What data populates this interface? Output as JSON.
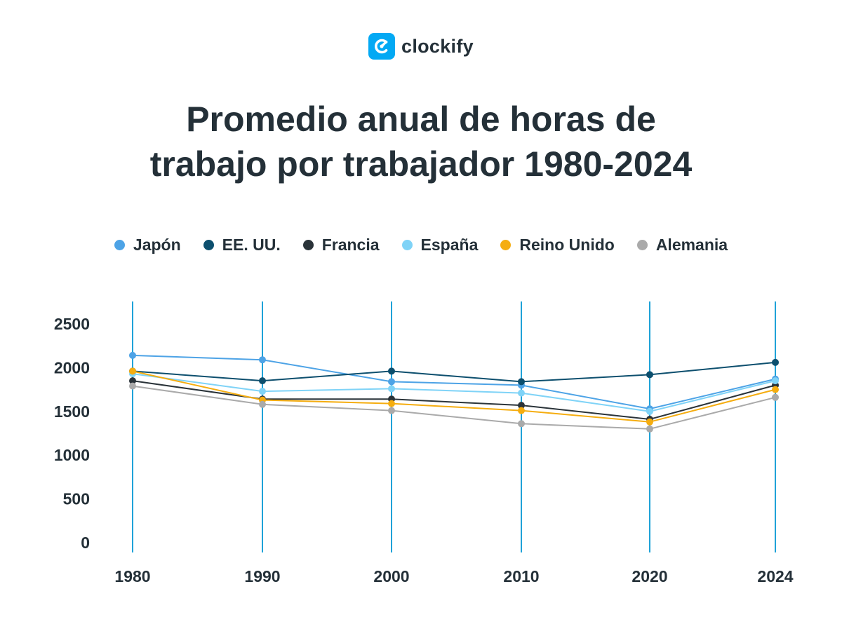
{
  "brand": {
    "name": "clockify",
    "accent": "#03a9f4"
  },
  "chart_data": {
    "type": "line",
    "title": "Promedio anual de horas de trabajo por trabajador 1980-2024",
    "title_lines": [
      "Promedio anual de horas de",
      "trabajo por trabajador 1980-2024"
    ],
    "x": [
      "1980",
      "1990",
      "2000",
      "2010",
      "2020",
      "2024"
    ],
    "ylim": [
      0,
      2500
    ],
    "yticks": [
      "0",
      "500",
      "1000",
      "1500",
      "2000",
      "2500"
    ],
    "grid": "vertical",
    "grid_color": "#1fa2d8",
    "legend_position": "top",
    "series": [
      {
        "name": "Japón",
        "color": "#4da3e6",
        "values": [
          2140,
          2090,
          1840,
          1800,
          1530,
          1870
        ]
      },
      {
        "name": "EE. UU.",
        "color": "#0d4f6e",
        "values": [
          1960,
          1850,
          1960,
          1840,
          1920,
          2060
        ]
      },
      {
        "name": "Francia",
        "color": "#2a3339",
        "values": [
          1850,
          1640,
          1640,
          1570,
          1410,
          1800
        ]
      },
      {
        "name": "España",
        "color": "#7fd3f7",
        "values": [
          1930,
          1730,
          1760,
          1710,
          1500,
          1850
        ]
      },
      {
        "name": "Reino Unido",
        "color": "#f5ad10",
        "values": [
          1960,
          1630,
          1590,
          1510,
          1380,
          1750
        ]
      },
      {
        "name": "Alemania",
        "color": "#aaaaaa",
        "values": [
          1790,
          1580,
          1510,
          1360,
          1300,
          1660
        ]
      }
    ]
  }
}
